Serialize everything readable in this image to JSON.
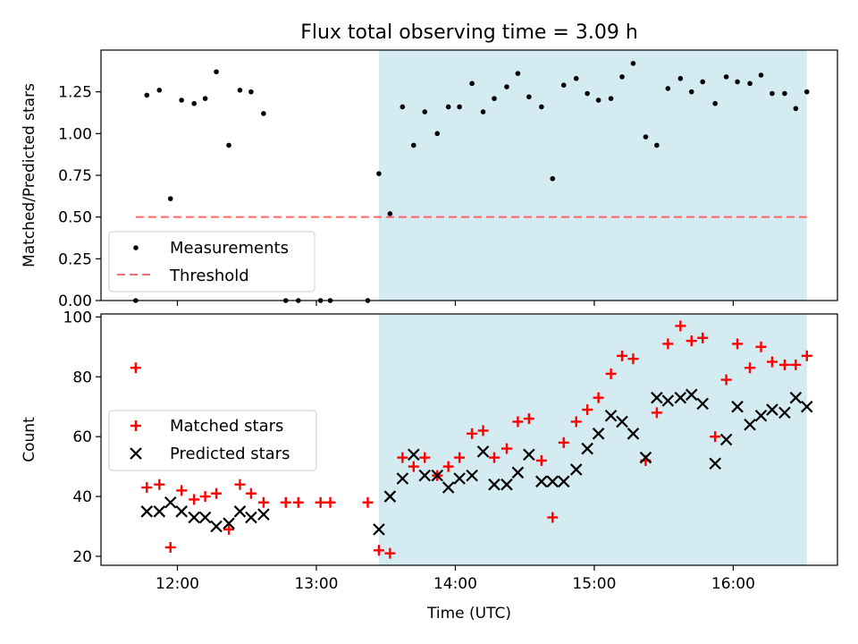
{
  "figure": {
    "title": "Flux total observing time = 3.09 h",
    "xlabel": "Time (UTC)",
    "colors": {
      "shade": "#add8e6",
      "measurement": "#000000",
      "threshold": "#ff4d4d",
      "matched": "#ff0000",
      "predicted": "#000000"
    }
  },
  "chart_data": [
    {
      "type": "scatter",
      "title": "Flux total observing time = 3.09 h",
      "ylabel": "Matched/Predicted stars",
      "xlabel": "",
      "xlim": [
        11.45,
        16.75
      ],
      "ylim": [
        0,
        1.5
      ],
      "yticks": [
        0,
        0.25,
        0.5,
        0.75,
        1.0,
        1.25
      ],
      "ytick_labels": [
        "0.00",
        "0.25",
        "0.50",
        "0.75",
        "1.00",
        "1.25"
      ],
      "xticks": [
        12,
        13,
        14,
        15,
        16
      ],
      "shaded_span": [
        13.45,
        16.53
      ],
      "legend_position": "lower-left",
      "legend": [
        "Measurements",
        "Threshold"
      ],
      "threshold": {
        "name": "Threshold",
        "y": 0.5,
        "x_range": [
          11.7,
          16.53
        ]
      },
      "series": [
        {
          "name": "Measurements",
          "points": [
            [
              11.7,
              0.0
            ],
            [
              11.78,
              1.23
            ],
            [
              11.87,
              1.26
            ],
            [
              11.95,
              0.61
            ],
            [
              12.03,
              1.2
            ],
            [
              12.12,
              1.18
            ],
            [
              12.2,
              1.21
            ],
            [
              12.28,
              1.37
            ],
            [
              12.37,
              0.93
            ],
            [
              12.45,
              1.26
            ],
            [
              12.53,
              1.25
            ],
            [
              12.62,
              1.12
            ],
            [
              12.78,
              0.0
            ],
            [
              12.87,
              0.0
            ],
            [
              13.03,
              0.0
            ],
            [
              13.1,
              0.0
            ],
            [
              13.37,
              0.0
            ],
            [
              13.45,
              0.76
            ],
            [
              13.53,
              0.52
            ],
            [
              13.62,
              1.16
            ],
            [
              13.7,
              0.93
            ],
            [
              13.78,
              1.13
            ],
            [
              13.87,
              1.0
            ],
            [
              13.95,
              1.16
            ],
            [
              14.03,
              1.16
            ],
            [
              14.12,
              1.3
            ],
            [
              14.2,
              1.13
            ],
            [
              14.28,
              1.21
            ],
            [
              14.37,
              1.28
            ],
            [
              14.45,
              1.36
            ],
            [
              14.53,
              1.22
            ],
            [
              14.62,
              1.16
            ],
            [
              14.7,
              0.73
            ],
            [
              14.78,
              1.29
            ],
            [
              14.87,
              1.33
            ],
            [
              14.95,
              1.24
            ],
            [
              15.03,
              1.2
            ],
            [
              15.12,
              1.21
            ],
            [
              15.2,
              1.34
            ],
            [
              15.28,
              1.42
            ],
            [
              15.37,
              0.98
            ],
            [
              15.45,
              0.93
            ],
            [
              15.53,
              1.27
            ],
            [
              15.62,
              1.33
            ],
            [
              15.7,
              1.25
            ],
            [
              15.78,
              1.31
            ],
            [
              15.87,
              1.18
            ],
            [
              15.95,
              1.34
            ],
            [
              16.03,
              1.31
            ],
            [
              16.12,
              1.3
            ],
            [
              16.2,
              1.35
            ],
            [
              16.28,
              1.24
            ],
            [
              16.37,
              1.24
            ],
            [
              16.45,
              1.15
            ],
            [
              16.53,
              1.25
            ]
          ]
        }
      ]
    },
    {
      "type": "scatter",
      "title": "",
      "ylabel": "Count",
      "xlabel": "Time (UTC)",
      "xlim": [
        11.45,
        16.75
      ],
      "ylim": [
        17,
        101
      ],
      "yticks": [
        20,
        40,
        60,
        80,
        100
      ],
      "ytick_labels": [
        "20",
        "40",
        "60",
        "80",
        "100"
      ],
      "xticks": [
        12,
        13,
        14,
        15,
        16
      ],
      "xtick_labels": [
        "12:00",
        "13:00",
        "14:00",
        "15:00",
        "16:00"
      ],
      "shaded_span": [
        13.45,
        16.53
      ],
      "legend_position": "center-left",
      "legend": [
        "Matched stars",
        "Predicted stars"
      ],
      "series": [
        {
          "name": "Matched stars",
          "marker": "plus",
          "points": [
            [
              11.7,
              83
            ],
            [
              11.78,
              43
            ],
            [
              11.87,
              44
            ],
            [
              11.95,
              23
            ],
            [
              12.03,
              42
            ],
            [
              12.12,
              39
            ],
            [
              12.2,
              40
            ],
            [
              12.28,
              41
            ],
            [
              12.37,
              29
            ],
            [
              12.45,
              44
            ],
            [
              12.53,
              41
            ],
            [
              12.62,
              38
            ],
            [
              12.78,
              38
            ],
            [
              12.87,
              38
            ],
            [
              13.03,
              38
            ],
            [
              13.1,
              38
            ],
            [
              13.37,
              38
            ],
            [
              13.45,
              22
            ],
            [
              13.53,
              21
            ],
            [
              13.62,
              53
            ],
            [
              13.7,
              50
            ],
            [
              13.78,
              53
            ],
            [
              13.87,
              47
            ],
            [
              13.95,
              50
            ],
            [
              14.03,
              53
            ],
            [
              14.12,
              61
            ],
            [
              14.2,
              62
            ],
            [
              14.28,
              53
            ],
            [
              14.37,
              56
            ],
            [
              14.45,
              65
            ],
            [
              14.53,
              66
            ],
            [
              14.62,
              52
            ],
            [
              14.7,
              33
            ],
            [
              14.78,
              58
            ],
            [
              14.87,
              65
            ],
            [
              14.95,
              69
            ],
            [
              15.03,
              73
            ],
            [
              15.12,
              81
            ],
            [
              15.2,
              87
            ],
            [
              15.28,
              86
            ],
            [
              15.37,
              52
            ],
            [
              15.45,
              68
            ],
            [
              15.53,
              91
            ],
            [
              15.62,
              97
            ],
            [
              15.7,
              92
            ],
            [
              15.78,
              93
            ],
            [
              15.87,
              60
            ],
            [
              15.95,
              79
            ],
            [
              16.03,
              91
            ],
            [
              16.12,
              83
            ],
            [
              16.2,
              90
            ],
            [
              16.28,
              85
            ],
            [
              16.37,
              84
            ],
            [
              16.45,
              84
            ],
            [
              16.53,
              87
            ]
          ]
        },
        {
          "name": "Predicted stars",
          "marker": "x",
          "points": [
            [
              11.78,
              35
            ],
            [
              11.87,
              35
            ],
            [
              11.95,
              38
            ],
            [
              12.03,
              35
            ],
            [
              12.12,
              33
            ],
            [
              12.2,
              33
            ],
            [
              12.28,
              30
            ],
            [
              12.37,
              31
            ],
            [
              12.45,
              35
            ],
            [
              12.53,
              33
            ],
            [
              12.62,
              34
            ],
            [
              13.45,
              29
            ],
            [
              13.53,
              40
            ],
            [
              13.62,
              46
            ],
            [
              13.7,
              54
            ],
            [
              13.78,
              47
            ],
            [
              13.87,
              47
            ],
            [
              13.95,
              43
            ],
            [
              14.03,
              46
            ],
            [
              14.12,
              47
            ],
            [
              14.2,
              55
            ],
            [
              14.28,
              44
            ],
            [
              14.37,
              44
            ],
            [
              14.45,
              48
            ],
            [
              14.53,
              54
            ],
            [
              14.62,
              45
            ],
            [
              14.7,
              45
            ],
            [
              14.78,
              45
            ],
            [
              14.87,
              49
            ],
            [
              14.95,
              56
            ],
            [
              15.03,
              61
            ],
            [
              15.12,
              67
            ],
            [
              15.2,
              65
            ],
            [
              15.28,
              61
            ],
            [
              15.37,
              53
            ],
            [
              15.45,
              73
            ],
            [
              15.53,
              72
            ],
            [
              15.62,
              73
            ],
            [
              15.7,
              74
            ],
            [
              15.78,
              71
            ],
            [
              15.87,
              51
            ],
            [
              15.95,
              59
            ],
            [
              16.03,
              70
            ],
            [
              16.12,
              64
            ],
            [
              16.2,
              67
            ],
            [
              16.28,
              69
            ],
            [
              16.37,
              68
            ],
            [
              16.45,
              73
            ],
            [
              16.53,
              70
            ]
          ]
        }
      ]
    }
  ]
}
